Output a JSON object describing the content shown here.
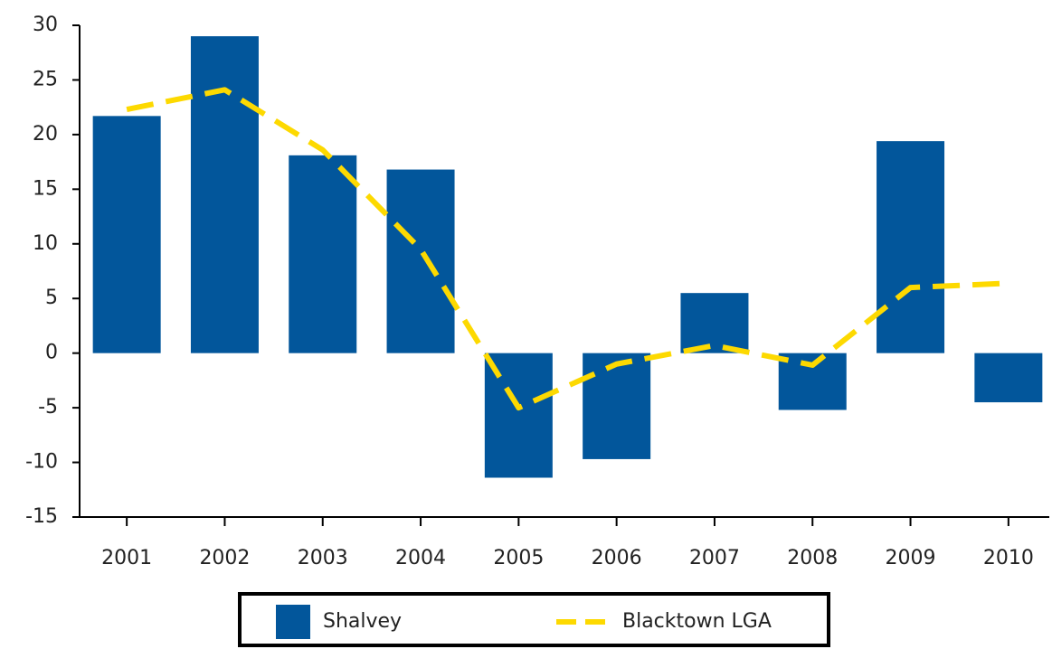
{
  "chart_data": {
    "type": "bar",
    "categories": [
      "2001",
      "2002",
      "2003",
      "2004",
      "2005",
      "2006",
      "2007",
      "2008",
      "2009",
      "2010"
    ],
    "series": [
      {
        "name": "Shalvey",
        "type": "bar",
        "color": "#02569b",
        "values": [
          21.7,
          29,
          18.1,
          16.8,
          -11.4,
          -9.7,
          5.5,
          -5.2,
          19.4,
          -4.5
        ]
      },
      {
        "name": "Blacktown LGA",
        "type": "line",
        "color": "#fdd900",
        "values": [
          22.3,
          24.1,
          18.6,
          9.5,
          -5.0,
          -1.0,
          0.7,
          -1.1,
          6.0,
          6.4
        ]
      }
    ],
    "ylim": [
      -15,
      30
    ],
    "yticks": [
      -15,
      -10,
      -5,
      0,
      5,
      10,
      15,
      20,
      25,
      30
    ],
    "grid": false,
    "legend": "bottom"
  }
}
